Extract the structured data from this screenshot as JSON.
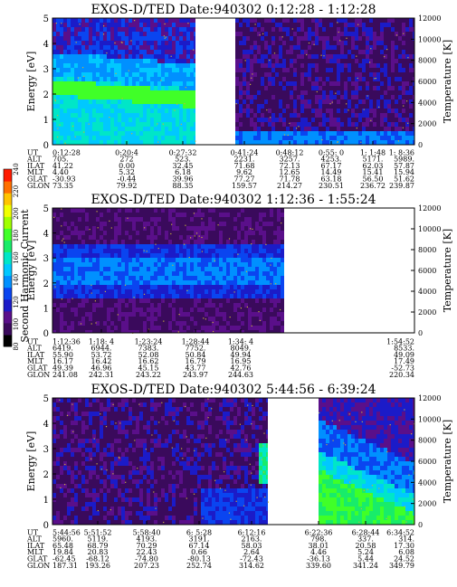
{
  "colors": {
    "background_lowest": "#3a0d5e",
    "specks": "#c9b23a",
    "scale": [
      "#000000",
      "#3a0a5c",
      "#5a0f8a",
      "#1b1bc8",
      "#0a45f0",
      "#0090ff",
      "#00c8ff",
      "#00e6c8",
      "#18ec6a",
      "#40ff28",
      "#a0ff00",
      "#f0ff00",
      "#ffc400",
      "#ff7000",
      "#ff1a00"
    ]
  },
  "colorbar": {
    "label": "Second Harmonic Current",
    "ticks": [
      "240",
      "220",
      "200",
      "180",
      "160",
      "140",
      "120",
      "100",
      "80"
    ]
  },
  "table_rows": [
    "UT",
    "ALT",
    "ILAT",
    "MLT",
    "GLAT",
    "GLON"
  ],
  "chart_data": [
    {
      "type": "heatmap",
      "title": "EXOS-D/TED   Date:940302   0:12:28 - 1:12:28",
      "ylabel": "Energy [eV]",
      "y2label": "Temperature [K]",
      "ylim": [
        0,
        5
      ],
      "yticks": [
        "0",
        "1",
        "2",
        "3",
        "4",
        "5"
      ],
      "y2lim": [
        0,
        12000
      ],
      "y2ticks": [
        "0",
        "2000",
        "4000",
        "6000",
        "8000",
        "10000",
        "12000"
      ],
      "segments": [
        [
          0.0,
          0.395
        ],
        [
          0.505,
          1.0
        ]
      ],
      "columns": [
        {
          "pos": 0.0,
          "UT": "0:12:28",
          "ALT": "705.",
          "ILAT": "41.22",
          "MLT": "4.40",
          "GLAT": "-30.93",
          "GLON": "73.35"
        },
        {
          "pos": 0.205,
          "UT": "0:20:4",
          "ALT": "272",
          "ILAT": "0.00",
          "MLT": "5.32",
          "GLAT": "-0.44",
          "GLON": "79.92"
        },
        {
          "pos": 0.36,
          "UT": "0:27:32",
          "ALT": "523.",
          "ILAT": "32.45",
          "MLT": "6.18",
          "GLAT": "39.96",
          "GLON": "88.35"
        },
        {
          "pos": 0.53,
          "UT": "0:41:24",
          "ALT": "2231.",
          "ILAT": "71.68",
          "MLT": "9.62",
          "GLAT": "77.27",
          "GLON": "159.57"
        },
        {
          "pos": 0.655,
          "UT": "0:48:12",
          "ALT": "3257.",
          "ILAT": "72.13",
          "MLT": "12.65",
          "GLAT": "71.78",
          "GLON": "214.27"
        },
        {
          "pos": 0.77,
          "UT": "0:55: 0",
          "ALT": "4253.",
          "ILAT": "67.17",
          "MLT": "14.49",
          "GLAT": "63.18",
          "GLON": "230.51"
        },
        {
          "pos": 0.885,
          "UT": "1: 1:48",
          "ALT": "5171.",
          "ILAT": "62.03",
          "MLT": "15.41",
          "GLAT": "56.50",
          "GLON": "236.72"
        },
        {
          "pos": 1.0,
          "UT": "1: 8:36",
          "ALT": "5989.",
          "ILAT": "57.87",
          "MLT": "15.94",
          "GLAT": "51.62",
          "GLON": "239.87"
        }
      ]
    },
    {
      "type": "heatmap",
      "title": "EXOS-D/TED   Date:940302   1:12:36 - 1:55:24",
      "ylabel": "Energy [eV]",
      "y2label": "Temperature [K]",
      "ylim": [
        0,
        5
      ],
      "yticks": [
        "0",
        "1",
        "2",
        "3",
        "4",
        "5"
      ],
      "y2lim": [
        0,
        12000
      ],
      "y2ticks": [
        "0",
        "2000",
        "4000",
        "6000",
        "8000",
        "10000",
        "12000"
      ],
      "segments": [
        [
          0.0,
          0.64
        ]
      ],
      "columns": [
        {
          "pos": 0.0,
          "UT": "1:12:36",
          "ALT": "6419.",
          "ILAT": "55.90",
          "MLT": "16.17",
          "GLAT": "49.39",
          "GLON": "241.08"
        },
        {
          "pos": 0.135,
          "UT": "1:18: 4",
          "ALT": "6944.",
          "ILAT": "53.72",
          "MLT": "16.42",
          "GLAT": "46.96",
          "GLON": "242.31"
        },
        {
          "pos": 0.265,
          "UT": "1:23:24",
          "ALT": "7383.",
          "ILAT": "52.08",
          "MLT": "16.62",
          "GLAT": "45.15",
          "GLON": "243.22"
        },
        {
          "pos": 0.395,
          "UT": "1:28:44",
          "ALT": "7752.",
          "ILAT": "50.84",
          "MLT": "16.79",
          "GLAT": "43.77",
          "GLON": "243.97"
        },
        {
          "pos": 0.52,
          "UT": "1:34: 4",
          "ALT": "8049.",
          "ILAT": "49.94",
          "MLT": "16.95",
          "GLAT": "42.76",
          "GLON": "244.63"
        },
        {
          "pos": 1.0,
          "UT": "1:54:52",
          "ALT": "8533.",
          "ILAT": "49.09",
          "MLT": "17.49",
          "GLAT": "-52.73",
          "GLON": "220.34"
        }
      ]
    },
    {
      "type": "heatmap",
      "title": "EXOS-D/TED   Date:940302   5:44:56 - 6:39:24",
      "ylabel": "Energy [eV]",
      "y2label": "Temperature [K]",
      "ylim": [
        0,
        5
      ],
      "yticks": [
        "0",
        "1",
        "2",
        "3",
        "4",
        "5"
      ],
      "y2lim": [
        0,
        12000
      ],
      "y2ticks": [
        "0",
        "2000",
        "4000",
        "6000",
        "8000",
        "10000",
        "12000"
      ],
      "segments": [
        [
          0.0,
          0.595
        ],
        [
          0.735,
          1.0
        ]
      ],
      "columns": [
        {
          "pos": 0.0,
          "UT": "5:44:56",
          "ALT": "5960.",
          "ILAT": "65.48",
          "MLT": "19.84",
          "GLAT": "-62.45",
          "GLON": "187.31"
        },
        {
          "pos": 0.125,
          "UT": "5:51:52",
          "ALT": "5119.",
          "ILAT": "68.79",
          "MLT": "20.83",
          "GLAT": "-68.12",
          "GLON": "193.26"
        },
        {
          "pos": 0.26,
          "UT": "5:58:40",
          "ALT": "4193.",
          "ILAT": "70.29",
          "MLT": "22.43",
          "GLAT": "-74.80",
          "GLON": "207.23"
        },
        {
          "pos": 0.405,
          "UT": "6: 5:28",
          "ALT": "3191.",
          "ILAT": "67.14",
          "MLT": "0.66",
          "GLAT": "-80.13",
          "GLON": "252.74"
        },
        {
          "pos": 0.55,
          "UT": "6:12:16",
          "ALT": "2163.",
          "ILAT": "58.03",
          "MLT": "2.64",
          "GLAT": "-72.43",
          "GLON": "314.62"
        },
        {
          "pos": 0.735,
          "UT": "6:22:36",
          "ALT": "798.",
          "ILAT": "38.01",
          "MLT": "4.46",
          "GLAT": "-36.13",
          "GLON": "339.60"
        },
        {
          "pos": 0.865,
          "UT": "6:28:44",
          "ALT": "337.",
          "ILAT": "20.58",
          "MLT": "5.24",
          "GLAT": "5.44",
          "GLON": "341.24"
        },
        {
          "pos": 1.0,
          "UT": "6:34:52",
          "ALT": "314.",
          "ILAT": "17.30",
          "MLT": "6.08",
          "GLAT": "24.52",
          "GLON": "349.79"
        }
      ]
    }
  ]
}
